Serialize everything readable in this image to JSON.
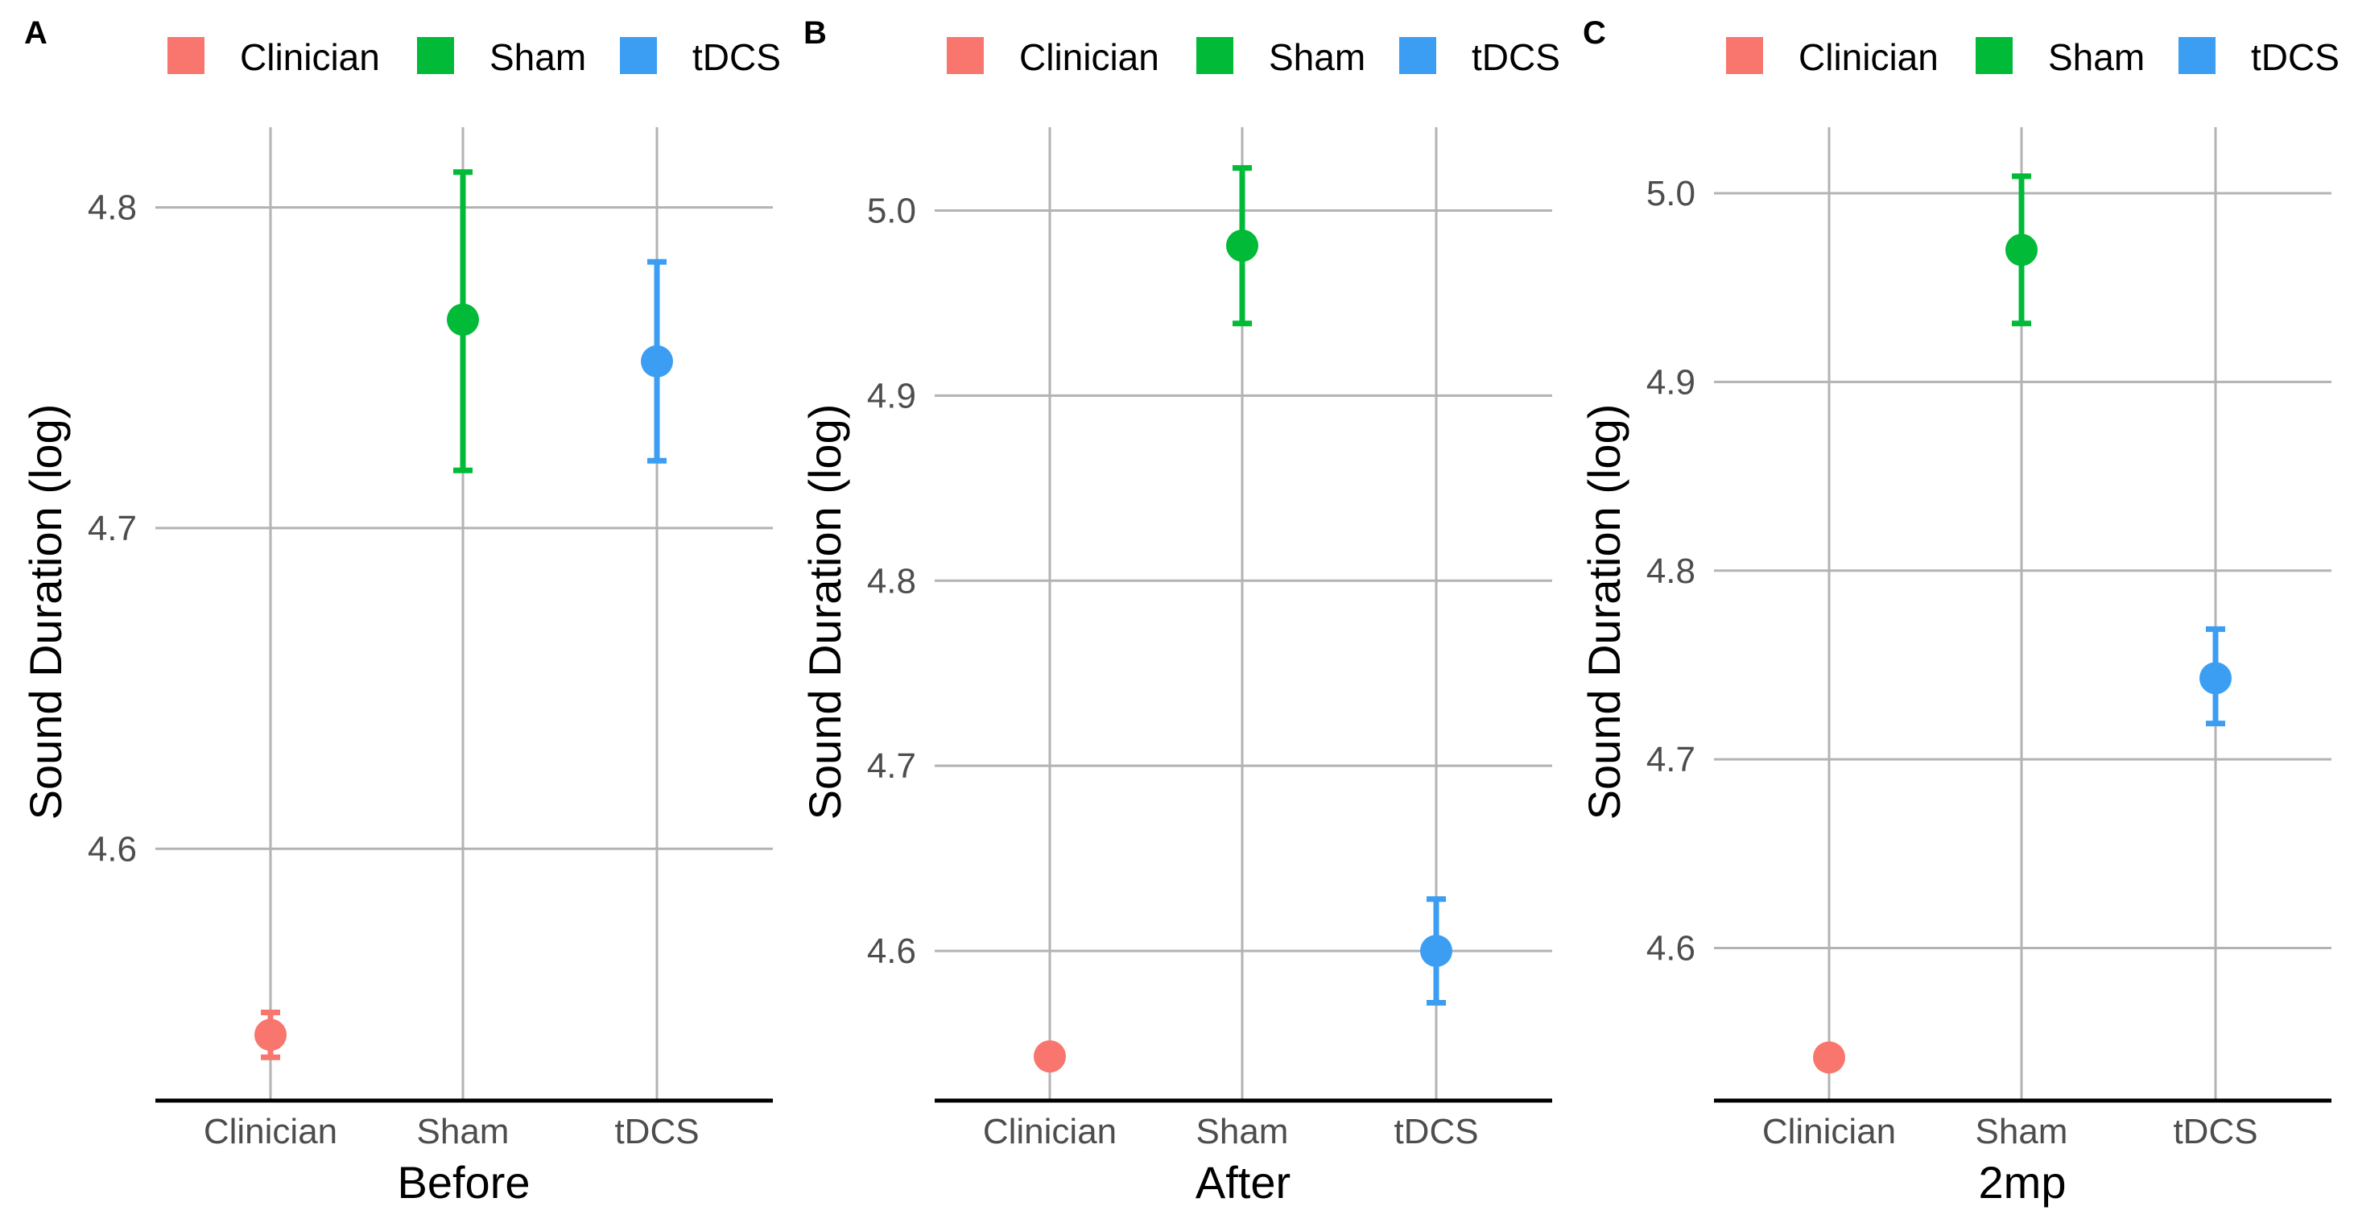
{
  "chart_data": [
    {
      "type": "scatter",
      "panel": "A",
      "xlabel": "Before",
      "ylabel": "Sound Duration (log)",
      "categories": [
        "Clinician",
        "Sham",
        "tDCS"
      ],
      "values": [
        4.542,
        4.765,
        4.752
      ],
      "ci_low": [
        4.535,
        4.718,
        4.721
      ],
      "ci_high": [
        4.549,
        4.811,
        4.783
      ],
      "ylim": [
        4.522,
        4.825
      ],
      "yticks": [
        4.6,
        4.7,
        4.8
      ],
      "ytick_labels": [
        "4.6",
        "4.7",
        "4.8"
      ],
      "legend": [
        "Clinician",
        "Sham",
        "tDCS"
      ]
    },
    {
      "type": "scatter",
      "panel": "B",
      "xlabel": "After",
      "ylabel": "Sound Duration (log)",
      "categories": [
        "Clinician",
        "Sham",
        "tDCS"
      ],
      "values": [
        4.543,
        4.981,
        4.6
      ],
      "ci_low": [
        4.538,
        4.939,
        4.572
      ],
      "ci_high": [
        4.548,
        5.023,
        4.628
      ],
      "ylim": [
        4.52,
        5.045
      ],
      "yticks": [
        4.6,
        4.7,
        4.8,
        4.9,
        5.0
      ],
      "ytick_labels": [
        "4.6",
        "4.7",
        "4.8",
        "4.9",
        "5.0"
      ],
      "legend": [
        "Clinician",
        "Sham",
        "tDCS"
      ]
    },
    {
      "type": "scatter",
      "panel": "C",
      "xlabel": "2mp",
      "ylabel": "Sound Duration (log)",
      "categories": [
        "Clinician",
        "Sham",
        "tDCS"
      ],
      "values": [
        4.542,
        4.97,
        4.743
      ],
      "ci_low": [
        4.537,
        4.931,
        4.719
      ],
      "ci_high": [
        4.547,
        5.009,
        4.769
      ],
      "ylim": [
        4.52,
        5.035
      ],
      "yticks": [
        4.6,
        4.7,
        4.8,
        4.9,
        5.0
      ],
      "ytick_labels": [
        "4.6",
        "4.7",
        "4.8",
        "4.9",
        "5.0"
      ],
      "legend": [
        "Clinician",
        "Sham",
        "tDCS"
      ]
    }
  ],
  "colors": {
    "Clinician": "#F8766D",
    "Sham": "#00BA38",
    "tDCS": "#3C9EF2"
  }
}
